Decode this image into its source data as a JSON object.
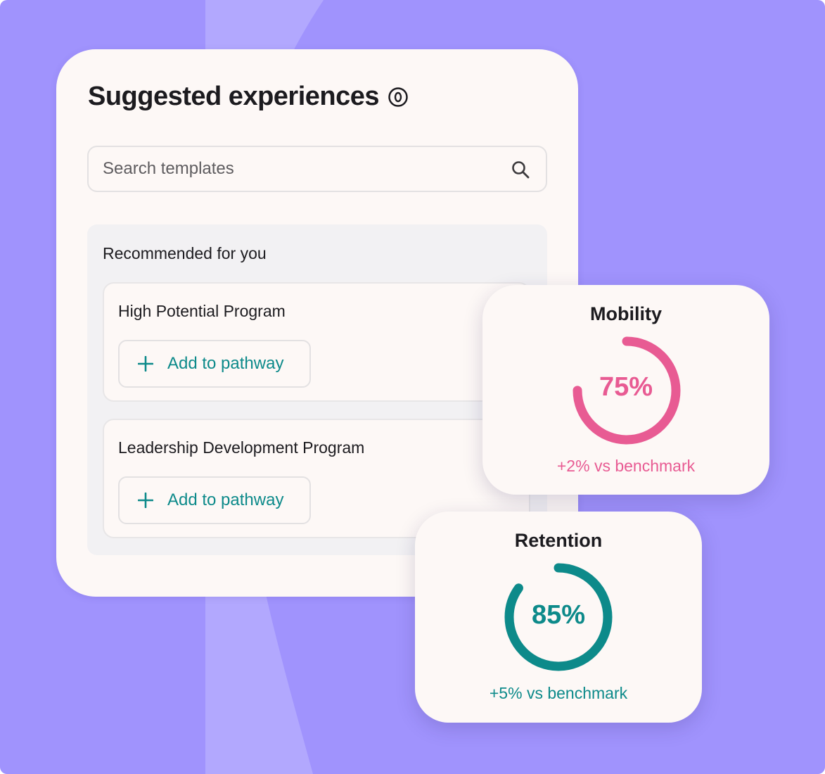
{
  "colors": {
    "background": "#a093fd",
    "card": "#fdf8f6",
    "accent_teal": "#0d8a8a",
    "accent_pink": "#e85b93"
  },
  "main": {
    "title": "Suggested experiences",
    "title_icon": "info-icon",
    "search": {
      "placeholder": "Search templates",
      "icon": "search-icon"
    },
    "recommended": {
      "heading": "Recommended for you",
      "items": [
        {
          "name": "High Potential Program",
          "button_label": "Add to pathway",
          "button_icon": "plus-icon"
        },
        {
          "name": "Leadership Development Program",
          "button_label": "Add to pathway",
          "button_icon": "plus-icon"
        }
      ]
    }
  },
  "stats": {
    "mobility": {
      "title": "Mobility",
      "value_text": "75%",
      "value": 0.75,
      "subtext": "+2% vs benchmark",
      "color": "#e85b93"
    },
    "retention": {
      "title": "Retention",
      "value_text": "85%",
      "value": 0.85,
      "subtext": "+5% vs benchmark",
      "color": "#0d8a8a"
    }
  }
}
